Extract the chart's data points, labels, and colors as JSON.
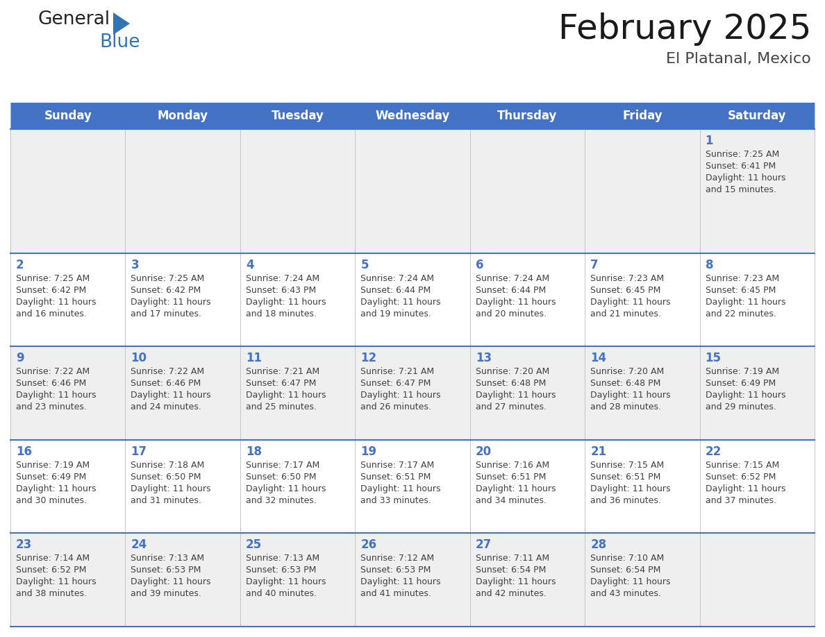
{
  "title": "February 2025",
  "subtitle": "El Platanal, Mexico",
  "days_of_week": [
    "Sunday",
    "Monday",
    "Tuesday",
    "Wednesday",
    "Thursday",
    "Friday",
    "Saturday"
  ],
  "header_bg": "#4472C4",
  "header_text_color": "#FFFFFF",
  "row_bg_odd": "#EFEFEF",
  "row_bg_even": "#FFFFFF",
  "line_color": "#4472C4",
  "day_number_color": "#4472C4",
  "text_color": "#404040",
  "logo_general_color": "#222222",
  "logo_blue_color": "#2E75B6",
  "title_fontsize": 36,
  "subtitle_fontsize": 16,
  "header_fontsize": 12,
  "day_num_fontsize": 12,
  "cell_text_fontsize": 9,
  "calendar_data": [
    [
      null,
      null,
      null,
      null,
      null,
      null,
      {
        "day": 1,
        "sunrise": "7:25 AM",
        "sunset": "6:41 PM",
        "daylight_line1": "Daylight: 11 hours",
        "daylight_line2": "and 15 minutes."
      }
    ],
    [
      {
        "day": 2,
        "sunrise": "7:25 AM",
        "sunset": "6:42 PM",
        "daylight_line1": "Daylight: 11 hours",
        "daylight_line2": "and 16 minutes."
      },
      {
        "day": 3,
        "sunrise": "7:25 AM",
        "sunset": "6:42 PM",
        "daylight_line1": "Daylight: 11 hours",
        "daylight_line2": "and 17 minutes."
      },
      {
        "day": 4,
        "sunrise": "7:24 AM",
        "sunset": "6:43 PM",
        "daylight_line1": "Daylight: 11 hours",
        "daylight_line2": "and 18 minutes."
      },
      {
        "day": 5,
        "sunrise": "7:24 AM",
        "sunset": "6:44 PM",
        "daylight_line1": "Daylight: 11 hours",
        "daylight_line2": "and 19 minutes."
      },
      {
        "day": 6,
        "sunrise": "7:24 AM",
        "sunset": "6:44 PM",
        "daylight_line1": "Daylight: 11 hours",
        "daylight_line2": "and 20 minutes."
      },
      {
        "day": 7,
        "sunrise": "7:23 AM",
        "sunset": "6:45 PM",
        "daylight_line1": "Daylight: 11 hours",
        "daylight_line2": "and 21 minutes."
      },
      {
        "day": 8,
        "sunrise": "7:23 AM",
        "sunset": "6:45 PM",
        "daylight_line1": "Daylight: 11 hours",
        "daylight_line2": "and 22 minutes."
      }
    ],
    [
      {
        "day": 9,
        "sunrise": "7:22 AM",
        "sunset": "6:46 PM",
        "daylight_line1": "Daylight: 11 hours",
        "daylight_line2": "and 23 minutes."
      },
      {
        "day": 10,
        "sunrise": "7:22 AM",
        "sunset": "6:46 PM",
        "daylight_line1": "Daylight: 11 hours",
        "daylight_line2": "and 24 minutes."
      },
      {
        "day": 11,
        "sunrise": "7:21 AM",
        "sunset": "6:47 PM",
        "daylight_line1": "Daylight: 11 hours",
        "daylight_line2": "and 25 minutes."
      },
      {
        "day": 12,
        "sunrise": "7:21 AM",
        "sunset": "6:47 PM",
        "daylight_line1": "Daylight: 11 hours",
        "daylight_line2": "and 26 minutes."
      },
      {
        "day": 13,
        "sunrise": "7:20 AM",
        "sunset": "6:48 PM",
        "daylight_line1": "Daylight: 11 hours",
        "daylight_line2": "and 27 minutes."
      },
      {
        "day": 14,
        "sunrise": "7:20 AM",
        "sunset": "6:48 PM",
        "daylight_line1": "Daylight: 11 hours",
        "daylight_line2": "and 28 minutes."
      },
      {
        "day": 15,
        "sunrise": "7:19 AM",
        "sunset": "6:49 PM",
        "daylight_line1": "Daylight: 11 hours",
        "daylight_line2": "and 29 minutes."
      }
    ],
    [
      {
        "day": 16,
        "sunrise": "7:19 AM",
        "sunset": "6:49 PM",
        "daylight_line1": "Daylight: 11 hours",
        "daylight_line2": "and 30 minutes."
      },
      {
        "day": 17,
        "sunrise": "7:18 AM",
        "sunset": "6:50 PM",
        "daylight_line1": "Daylight: 11 hours",
        "daylight_line2": "and 31 minutes."
      },
      {
        "day": 18,
        "sunrise": "7:17 AM",
        "sunset": "6:50 PM",
        "daylight_line1": "Daylight: 11 hours",
        "daylight_line2": "and 32 minutes."
      },
      {
        "day": 19,
        "sunrise": "7:17 AM",
        "sunset": "6:51 PM",
        "daylight_line1": "Daylight: 11 hours",
        "daylight_line2": "and 33 minutes."
      },
      {
        "day": 20,
        "sunrise": "7:16 AM",
        "sunset": "6:51 PM",
        "daylight_line1": "Daylight: 11 hours",
        "daylight_line2": "and 34 minutes."
      },
      {
        "day": 21,
        "sunrise": "7:15 AM",
        "sunset": "6:51 PM",
        "daylight_line1": "Daylight: 11 hours",
        "daylight_line2": "and 36 minutes."
      },
      {
        "day": 22,
        "sunrise": "7:15 AM",
        "sunset": "6:52 PM",
        "daylight_line1": "Daylight: 11 hours",
        "daylight_line2": "and 37 minutes."
      }
    ],
    [
      {
        "day": 23,
        "sunrise": "7:14 AM",
        "sunset": "6:52 PM",
        "daylight_line1": "Daylight: 11 hours",
        "daylight_line2": "and 38 minutes."
      },
      {
        "day": 24,
        "sunrise": "7:13 AM",
        "sunset": "6:53 PM",
        "daylight_line1": "Daylight: 11 hours",
        "daylight_line2": "and 39 minutes."
      },
      {
        "day": 25,
        "sunrise": "7:13 AM",
        "sunset": "6:53 PM",
        "daylight_line1": "Daylight: 11 hours",
        "daylight_line2": "and 40 minutes."
      },
      {
        "day": 26,
        "sunrise": "7:12 AM",
        "sunset": "6:53 PM",
        "daylight_line1": "Daylight: 11 hours",
        "daylight_line2": "and 41 minutes."
      },
      {
        "day": 27,
        "sunrise": "7:11 AM",
        "sunset": "6:54 PM",
        "daylight_line1": "Daylight: 11 hours",
        "daylight_line2": "and 42 minutes."
      },
      {
        "day": 28,
        "sunrise": "7:10 AM",
        "sunset": "6:54 PM",
        "daylight_line1": "Daylight: 11 hours",
        "daylight_line2": "and 43 minutes."
      },
      null
    ]
  ]
}
